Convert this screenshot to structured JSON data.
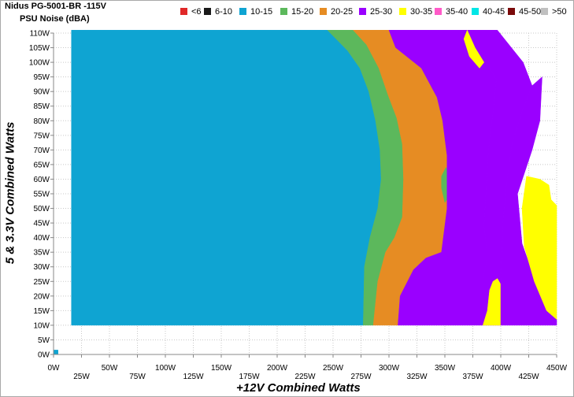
{
  "title": "Nidus PG-5001-BR -115V",
  "subtitle": "PSU Noise (dBA)",
  "colors": {
    "band_lt6": "#e02828",
    "band_6_10": "#1a1a1a",
    "band_10_15": "#0fa4d2",
    "band_15_20": "#5cb85c",
    "band_20_25": "#e68c23",
    "band_25_30": "#9a00ff",
    "band_30_35": "#ffff00",
    "band_35_40": "#ff5ac8",
    "band_40_45": "#00e6e6",
    "band_45_50": "#7a0a0a",
    "band_gt50": "#c0c0c0"
  },
  "chart_data": {
    "type": "heatmap",
    "title": "Nidus PG-5001-BR -115V",
    "subtitle": "PSU Noise (dBA)",
    "xlabel": "+12V Combined Watts",
    "ylabel": "5 & 3.3V Combined Watts",
    "xlim": [
      0,
      450
    ],
    "ylim": [
      0,
      110
    ],
    "x_ticks": [
      "0W",
      "25W",
      "50W",
      "75W",
      "100W",
      "125W",
      "150W",
      "175W",
      "200W",
      "225W",
      "250W",
      "275W",
      "300W",
      "325W",
      "350W",
      "375W",
      "400W",
      "425W",
      "450W"
    ],
    "y_ticks": [
      "0W",
      "5W",
      "10W",
      "15W",
      "20W",
      "25W",
      "30W",
      "35W",
      "40W",
      "45W",
      "50W",
      "55W",
      "60W",
      "65W",
      "70W",
      "75W",
      "80W",
      "85W",
      "90W",
      "95W",
      "100W",
      "105W",
      "110W"
    ],
    "grid": true,
    "legend_position": "top",
    "legend": [
      {
        "label": "<6",
        "color": "#e02828"
      },
      {
        "label": "6-10",
        "color": "#1a1a1a"
      },
      {
        "label": "10-15",
        "color": "#0fa4d2"
      },
      {
        "label": "15-20",
        "color": "#5cb85c"
      },
      {
        "label": "20-25",
        "color": "#e68c23"
      },
      {
        "label": "25-30",
        "color": "#9a00ff"
      },
      {
        "label": "30-35",
        "color": "#ffff00"
      },
      {
        "label": "35-40",
        "color": "#ff5ac8"
      },
      {
        "label": "40-45",
        "color": "#00e6e6"
      },
      {
        "label": "45-50",
        "color": "#7a0a0a"
      },
      {
        "label": ">50",
        "color": "#c0c0c0"
      }
    ],
    "noise_regions": [
      {
        "band": "10-15",
        "color": "#0fa4d2",
        "points": [
          [
            0,
            0
          ],
          [
            4,
            0
          ],
          [
            4,
            1.5
          ],
          [
            0,
            1.5
          ]
        ]
      },
      {
        "band": "10-15",
        "color": "#0fa4d2",
        "points": [
          [
            16,
            10
          ],
          [
            277,
            10
          ],
          [
            278,
            30
          ],
          [
            283,
            40
          ],
          [
            290,
            50
          ],
          [
            293,
            60
          ],
          [
            292,
            70
          ],
          [
            288,
            80
          ],
          [
            282,
            90
          ],
          [
            274,
            98
          ],
          [
            263,
            104
          ],
          [
            245,
            111
          ],
          [
            16,
            111
          ]
        ]
      },
      {
        "band": "15-20",
        "color": "#5cb85c",
        "points": [
          [
            245,
            111
          ],
          [
            263,
            104
          ],
          [
            274,
            98
          ],
          [
            282,
            90
          ],
          [
            288,
            80
          ],
          [
            292,
            70
          ],
          [
            293,
            60
          ],
          [
            290,
            50
          ],
          [
            283,
            40
          ],
          [
            278,
            30
          ],
          [
            277,
            10
          ],
          [
            286,
            10
          ],
          [
            290,
            25
          ],
          [
            297,
            35
          ],
          [
            305,
            40
          ],
          [
            312,
            47
          ],
          [
            313,
            60
          ],
          [
            312,
            72
          ],
          [
            307,
            81
          ],
          [
            299,
            89
          ],
          [
            291,
            98
          ],
          [
            280,
            106
          ],
          [
            268,
            111
          ]
        ]
      },
      {
        "band": "20-25",
        "color": "#e68c23",
        "points": [
          [
            268,
            111
          ],
          [
            280,
            106
          ],
          [
            291,
            98
          ],
          [
            299,
            89
          ],
          [
            307,
            81
          ],
          [
            312,
            72
          ],
          [
            313,
            60
          ],
          [
            312,
            47
          ],
          [
            305,
            40
          ],
          [
            297,
            35
          ],
          [
            290,
            25
          ],
          [
            286,
            10
          ],
          [
            308,
            10
          ],
          [
            310,
            20
          ],
          [
            322,
            29
          ],
          [
            333,
            33
          ],
          [
            347,
            35
          ],
          [
            352,
            50
          ],
          [
            352,
            68
          ],
          [
            348,
            80
          ],
          [
            343,
            88
          ],
          [
            329,
            98
          ],
          [
            306,
            105
          ],
          [
            300,
            111
          ]
        ]
      },
      {
        "band": "15-20",
        "color": "#5cb85c",
        "points": [
          [
            347,
            57
          ],
          [
            350,
            52
          ],
          [
            355,
            55
          ],
          [
            354,
            62
          ],
          [
            351,
            64
          ],
          [
            347,
            61
          ]
        ]
      },
      {
        "band": "25-30",
        "color": "#9a00ff",
        "points": [
          [
            300,
            111
          ],
          [
            306,
            105
          ],
          [
            329,
            98
          ],
          [
            343,
            88
          ],
          [
            348,
            80
          ],
          [
            352,
            68
          ],
          [
            352,
            50
          ],
          [
            347,
            35
          ],
          [
            333,
            33
          ],
          [
            322,
            29
          ],
          [
            310,
            20
          ],
          [
            308,
            10
          ],
          [
            384,
            10
          ],
          [
            384,
            25
          ],
          [
            388,
            34
          ],
          [
            385,
            44
          ],
          [
            387,
            57
          ],
          [
            389,
            70
          ],
          [
            393,
            83
          ],
          [
            396,
            94
          ],
          [
            385,
            102
          ],
          [
            374,
            111
          ]
        ]
      },
      {
        "band": "25-30",
        "color": "#9a00ff",
        "points": [
          [
            374,
            111
          ],
          [
            385,
            102
          ],
          [
            396,
            94
          ],
          [
            393,
            83
          ],
          [
            389,
            70
          ],
          [
            387,
            57
          ],
          [
            385,
            44
          ],
          [
            388,
            34
          ],
          [
            384,
            25
          ],
          [
            384,
            10
          ],
          [
            400,
            10
          ],
          [
            400,
            25
          ],
          [
            402,
            45
          ],
          [
            405,
            58
          ],
          [
            410,
            72
          ],
          [
            418,
            82
          ],
          [
            428,
            92
          ],
          [
            420,
            100
          ],
          [
            397,
            111
          ]
        ]
      },
      {
        "band": "30-35",
        "color": "#ffff00",
        "points": [
          [
            384,
            10
          ],
          [
            400,
            10
          ],
          [
            400,
            24
          ],
          [
            397,
            26
          ],
          [
            393,
            25
          ],
          [
            390,
            22
          ],
          [
            388,
            15
          ]
        ]
      },
      {
        "band": "25-30",
        "color": "#9a00ff",
        "points": [
          [
            400,
            10
          ],
          [
            450,
            10
          ],
          [
            450,
            12
          ],
          [
            443,
            15
          ],
          [
            432,
            24
          ],
          [
            419,
            38
          ],
          [
            415,
            55
          ],
          [
            422,
            63
          ],
          [
            428,
            70
          ],
          [
            435,
            80
          ],
          [
            437,
            95
          ],
          [
            428,
            92
          ],
          [
            418,
            82
          ],
          [
            410,
            72
          ],
          [
            405,
            58
          ],
          [
            402,
            45
          ],
          [
            400,
            25
          ]
        ]
      },
      {
        "band": "30-35",
        "color": "#ffff00",
        "points": [
          [
            450,
            12
          ],
          [
            450,
            51
          ],
          [
            445,
            53
          ],
          [
            443,
            58
          ],
          [
            435,
            60
          ],
          [
            423,
            61
          ],
          [
            419,
            50
          ],
          [
            421,
            37
          ],
          [
            430,
            25
          ],
          [
            441,
            15
          ]
        ]
      },
      {
        "band": "30-35",
        "color": "#ffff00",
        "points": [
          [
            370,
            111
          ],
          [
            377,
            105
          ],
          [
            385,
            100
          ],
          [
            381,
            98
          ],
          [
            372,
            102
          ],
          [
            367,
            108
          ]
        ]
      }
    ]
  }
}
